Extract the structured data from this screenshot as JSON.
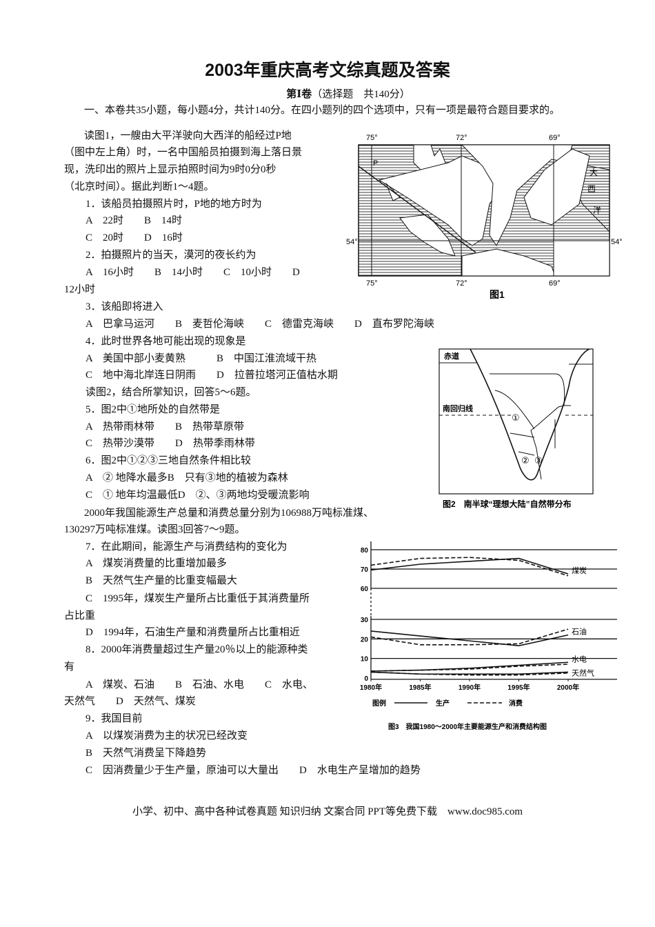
{
  "title": "2003年重庆高考文综真题及答案",
  "section": {
    "part": "第Ⅰ卷",
    "desc": "（选择题　共140分）"
  },
  "intro": "一、本卷共35小题，每小题4分，共计140分。在四小题列的四个选项中，只有一项是最符合题目要求的。",
  "lines": [
    "读图1，一艘由大平洋驶向大西洋的船经过P地",
    "（图中左上角）时，一名中国船员拍摄到海上落日景",
    "现，洗印出的照片上显示拍照时间为9时0分0秒",
    "（北京时间）。据此判断1～4题。",
    "1．该船员拍摄照片时，P地的地方时为",
    "A　22时　　B　14时",
    "C　20时　　D　16时",
    "2．拍摄照片的当天，漠河的夜长约为",
    "A　16小时　　B　14小时　　C　10小时　　D",
    "12小时",
    "3．该船即将进入",
    "A　巴拿马运河　　B　麦哲伦海峡　　C　德雷克海峡　　D　直布罗陀海峡",
    "4．此时世界各地可能出现的现象是",
    "A　美国中部小麦黄熟　　　B　中国江淮流域干热",
    "C　地中海北岸连日阴雨　　D　拉普拉塔河正值枯水期",
    "读图2，结合所掌知识，回答5～6题。",
    "5．图2中①地所处的自然带是",
    "A　热带雨林带　　B　热带草原带",
    "C　热带沙漠带　　D　热带季雨林带",
    "6．图2中①②③三地自然条件相比较",
    "A　② 地降水最多B　只有③地的植被为森林",
    "C　① 地年均温最低D　②、③两地均受暖流影响",
    "2000年我国能源生产总量和消费总量分别为106988万吨标准煤、",
    "130297万吨标准煤。读图3回答7～9题。",
    "7．在此期间，能源生产与消费结构的变化为",
    "A　煤炭消费量的比重增加最多",
    "B　天然气生产量的比重变幅最大",
    "C　1995年，煤炭生产量所占比重低于其消费量所",
    "占比重",
    "D　1994年，石油生产量和消费量所占比重相近",
    "8．2000年消费量超过生产量20％以上的能源种类",
    "有",
    "A　煤炭、石油　　B　石油、水电　　C　水电、",
    "天然气　　D　天然气、煤炭",
    "9．我国目前",
    "A　以煤炭消费为主的状况已经改变",
    "B　天然气消费呈下降趋势",
    "C　因消费量少于生产量，原油可以大量出　　D　水电生产呈增加的趋势"
  ],
  "figure1": {
    "caption": "图1",
    "longitudes": [
      "75°",
      "72°",
      "69°"
    ],
    "latitude": "54°",
    "point": "P",
    "ocean_label": [
      "大",
      "西",
      "洋"
    ]
  },
  "figure2": {
    "caption": "图2　南半球“理想大陆”自然带分布",
    "equator": "赤道",
    "tropic": "南回归线",
    "markers": [
      "①",
      "②",
      "③"
    ]
  },
  "chart_data": {
    "type": "line",
    "title": "图3　我国1980～2000年主要能源生产和消费结构图",
    "categories": [
      "1980年",
      "1985年",
      "1990年",
      "1995年",
      "2000年"
    ],
    "x": [
      1980,
      1985,
      1990,
      1995,
      2000
    ],
    "yticks_top": [
      60,
      70,
      80
    ],
    "yticks_bottom": [
      0,
      10,
      20,
      30
    ],
    "ylim_top": [
      60,
      80
    ],
    "ylim_bottom": [
      0,
      30
    ],
    "axis_break": true,
    "grid": true,
    "legend": {
      "label": "图例",
      "production": "生产",
      "consumption": "消费",
      "placement": "bottom"
    },
    "series": [
      {
        "name": "煤炭",
        "kind": "production",
        "values": [
          69.5,
          72.5,
          74,
          75.5,
          67.5
        ]
      },
      {
        "name": "煤炭",
        "kind": "consumption",
        "values": [
          72,
          75.5,
          76,
          74.5,
          66.5
        ]
      },
      {
        "name": "石油",
        "kind": "production",
        "values": [
          24,
          21.5,
          19,
          16.5,
          22
        ]
      },
      {
        "name": "石油",
        "kind": "consumption",
        "values": [
          21,
          17,
          17,
          17.5,
          25
        ]
      },
      {
        "name": "水电",
        "kind": "production",
        "values": [
          3.5,
          4,
          5,
          6.5,
          8
        ]
      },
      {
        "name": "水电",
        "kind": "consumption",
        "values": [
          3.5,
          4,
          4.5,
          6,
          7
        ]
      },
      {
        "name": "天然气",
        "kind": "production",
        "values": [
          3,
          2,
          2,
          2,
          3
        ]
      },
      {
        "name": "天然气",
        "kind": "consumption",
        "values": [
          3,
          2,
          1.5,
          1.5,
          2.5
        ]
      }
    ]
  },
  "footer": "小学、初中、高中各种试卷真题 知识归纳 文案合同 PPT等免费下载　www.doc985.com"
}
